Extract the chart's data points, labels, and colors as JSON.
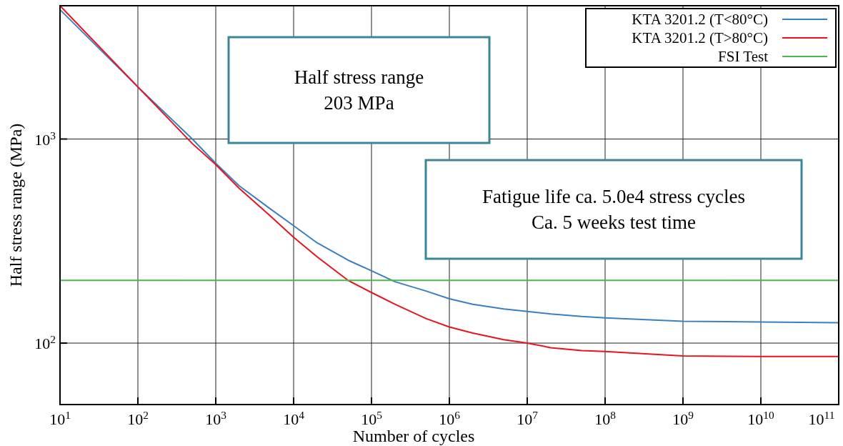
{
  "chart_data": {
    "type": "line",
    "xlabel": "Number of cycles",
    "ylabel": "Half stress range (MPa)",
    "log": "xy",
    "grid": true,
    "legend": "top right",
    "xlim": [
      10,
      100000000000
    ],
    "ylim": [
      50,
      4500
    ],
    "xticks": [
      {
        "value": 10,
        "label": "10$^{1}$"
      },
      {
        "value": 100,
        "label": "10$^{2}$"
      },
      {
        "value": 1000,
        "label": "10$^{3}$"
      },
      {
        "value": 10000,
        "label": "10$^{4}$"
      },
      {
        "value": 100000,
        "label": "10$^{5}$"
      },
      {
        "value": 1000000,
        "label": "10$^{6}$"
      },
      {
        "value": 10000000,
        "label": "10$^{7}$"
      },
      {
        "value": 100000000,
        "label": "10$^{8}$"
      },
      {
        "value": 1000000000,
        "label": "10$^{9}$"
      },
      {
        "value": 10000000000,
        "label": "10$^{10}$"
      },
      {
        "value": 100000000000,
        "label": "10$^{11}$"
      }
    ],
    "yticks": [
      {
        "value": 100,
        "label": "10$^{2}$"
      },
      {
        "value": 1000,
        "label": "10$^{3}$"
      }
    ],
    "annotations": [
      "Half stress range\n203 MPa",
      "Fatigue life ca. 5.0e4 stress cycles\nCa. 5 weeks test time"
    ],
    "series": [
      {
        "name": "KTA 3201.2 (T<80°C)",
        "color": "#3a7fc4",
        "x": [
          10,
          100,
          500,
          1000,
          2000,
          5000,
          10000,
          20000,
          50000,
          100000,
          200000,
          500000,
          1000000,
          2000000,
          5000000,
          10000000,
          20000000,
          50000000,
          100000000,
          1000000000,
          10000000000,
          100000000000
        ],
        "values": [
          4300,
          1800,
          1000,
          760,
          590,
          455,
          376,
          310,
          255,
          226,
          200,
          180,
          165,
          155,
          147,
          143,
          139,
          135,
          133,
          128,
          127,
          126
        ]
      },
      {
        "name": "KTA 3201.2 (T>80°C)",
        "color": "#e8141c",
        "x": [
          10,
          100,
          500,
          1000,
          2000,
          5000,
          10000,
          20000,
          50000,
          100000,
          200000,
          500000,
          1000000,
          2000000,
          5000000,
          10000000,
          20000000,
          50000000,
          100000000,
          1000000000,
          10000000000,
          100000000000
        ],
        "values": [
          4500,
          1800,
          950,
          750,
          573,
          420,
          330,
          265,
          203,
          177,
          155,
          132,
          120,
          112,
          104,
          100,
          95,
          92,
          91,
          86.5,
          86,
          86
        ]
      },
      {
        "name": "FSI Test",
        "color": "#4cb848",
        "x": [
          10,
          100000000000
        ],
        "values": [
          203,
          203
        ]
      }
    ]
  }
}
